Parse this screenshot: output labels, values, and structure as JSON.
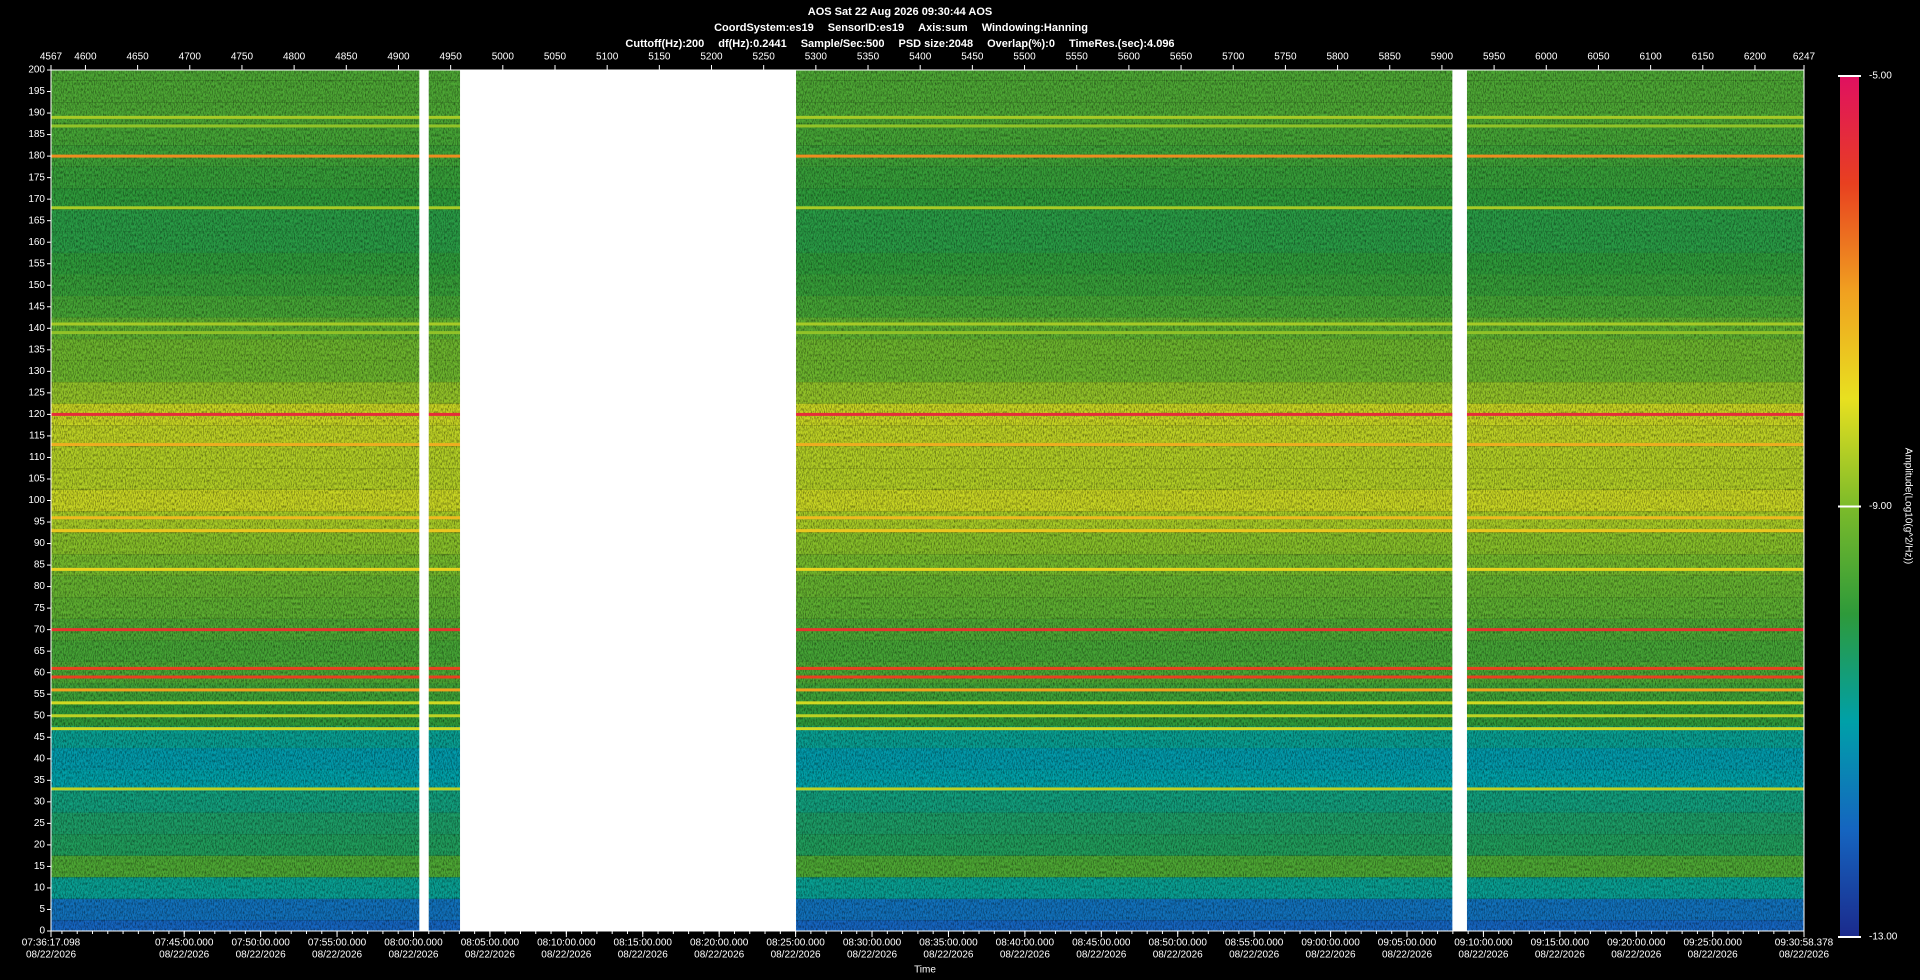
{
  "header": {
    "title": "AOS  Sat 22 Aug 2026 09:30:44  AOS",
    "info1": [
      "CoordSystem:es19",
      "SensorID:es19",
      "Axis:sum",
      "Windowing:Hanning"
    ],
    "info2": [
      "Cuttoff(Hz):200",
      "df(Hz):0.2441",
      "Sample/Sec:500",
      "PSD size:2048",
      "Overlap(%):0",
      "TimeRes.(sec):4.096"
    ]
  },
  "chart_data": {
    "type": "spectrogram",
    "x_label": "Time",
    "colorbar_label": "Amplitude(Log10(g^2/Hz))",
    "xlim": [
      4567,
      6247
    ],
    "xticks": [
      4567,
      4600,
      4650,
      4700,
      4750,
      4800,
      4850,
      4900,
      4950,
      5000,
      5050,
      5100,
      5150,
      5200,
      5250,
      5300,
      5350,
      5400,
      5450,
      5500,
      5550,
      5600,
      5650,
      5700,
      5750,
      5800,
      5850,
      5900,
      5950,
      6000,
      6050,
      6100,
      6150,
      6200,
      6247
    ],
    "time_ticks": [
      {
        "time": "07:36:17.098",
        "date": "08/22/2026"
      },
      {
        "time": "07:45:00.000",
        "date": "08/22/2026"
      },
      {
        "time": "07:50:00.000",
        "date": "08/22/2026"
      },
      {
        "time": "07:55:00.000",
        "date": "08/22/2026"
      },
      {
        "time": "08:00:00.000",
        "date": "08/22/2026"
      },
      {
        "time": "08:05:00.000",
        "date": "08/22/2026"
      },
      {
        "time": "08:10:00.000",
        "date": "08/22/2026"
      },
      {
        "time": "08:15:00.000",
        "date": "08/22/2026"
      },
      {
        "time": "08:20:00.000",
        "date": "08/22/2026"
      },
      {
        "time": "08:25:00.000",
        "date": "08/22/2026"
      },
      {
        "time": "08:30:00.000",
        "date": "08/22/2026"
      },
      {
        "time": "08:35:00.000",
        "date": "08/22/2026"
      },
      {
        "time": "08:40:00.000",
        "date": "08/22/2026"
      },
      {
        "time": "08:45:00.000",
        "date": "08/22/2026"
      },
      {
        "time": "08:50:00.000",
        "date": "08/22/2026"
      },
      {
        "time": "08:55:00.000",
        "date": "08/22/2026"
      },
      {
        "time": "09:00:00.000",
        "date": "08/22/2026"
      },
      {
        "time": "09:05:00.000",
        "date": "08/22/2026"
      },
      {
        "time": "09:10:00.000",
        "date": "08/22/2026"
      },
      {
        "time": "09:15:00.000",
        "date": "08/22/2026"
      },
      {
        "time": "09:20:00.000",
        "date": "08/22/2026"
      },
      {
        "time": "09:25:00.000",
        "date": "08/22/2026"
      },
      {
        "time": "09:30:58.378",
        "date": "08/22/2026"
      }
    ],
    "ylim": [
      0,
      200
    ],
    "yticks": [
      0,
      5,
      10,
      15,
      20,
      25,
      30,
      35,
      40,
      45,
      50,
      55,
      60,
      65,
      70,
      75,
      80,
      85,
      90,
      95,
      100,
      105,
      110,
      115,
      120,
      125,
      130,
      135,
      140,
      145,
      150,
      155,
      160,
      165,
      170,
      175,
      180,
      185,
      190,
      195,
      200
    ],
    "clim": [
      -13,
      -5
    ],
    "cticks": [
      {
        "value": -5,
        "label": "-5.00"
      },
      {
        "value": -9,
        "label": "-9.00"
      },
      {
        "value": -13,
        "label": "-13.00"
      }
    ],
    "colormap": [
      "#1b2a8c",
      "#1565c0",
      "#00a0a8",
      "#2e9a3a",
      "#7cbb2a",
      "#e8e020",
      "#f0a020",
      "#e84020",
      "#e01060"
    ],
    "profile": {
      "freqs": [
        0,
        5,
        10,
        15,
        20,
        25,
        30,
        35,
        40,
        45,
        50,
        55,
        60,
        65,
        70,
        75,
        80,
        85,
        90,
        95,
        100,
        105,
        110,
        115,
        120,
        125,
        130,
        135,
        140,
        145,
        150,
        155,
        160,
        165,
        170,
        175,
        180,
        185,
        190,
        195,
        200
      ],
      "values": [
        -12,
        -11.8,
        -10.8,
        -9.6,
        -10.3,
        -10.4,
        -10.6,
        -11,
        -11.1,
        -10.8,
        -10,
        -9.8,
        -9.6,
        -9.7,
        -9.6,
        -9.4,
        -9.3,
        -9.1,
        -8.9,
        -8.6,
        -8.3,
        -8.5,
        -8.5,
        -8.4,
        -8.3,
        -8.8,
        -9.2,
        -9.2,
        -9.4,
        -9.7,
        -9.9,
        -10,
        -10.1,
        -10.1,
        -10,
        -9.9,
        -9.8,
        -9.7,
        -9.6,
        -9.6,
        -9.6
      ]
    },
    "tones": [
      {
        "freq": 189,
        "amp": -8.6
      },
      {
        "freq": 187,
        "amp": -8.8
      },
      {
        "freq": 180,
        "amp": -6.8
      },
      {
        "freq": 168,
        "amp": -8.6
      },
      {
        "freq": 141,
        "amp": -8.6
      },
      {
        "freq": 139,
        "amp": -8.8
      },
      {
        "freq": 120,
        "amp": -5.6
      },
      {
        "freq": 113,
        "amp": -7.2
      },
      {
        "freq": 96,
        "amp": -7.4
      },
      {
        "freq": 93,
        "amp": -7.6
      },
      {
        "freq": 84,
        "amp": -7.8
      },
      {
        "freq": 70,
        "amp": -5.8
      },
      {
        "freq": 61,
        "amp": -6
      },
      {
        "freq": 59,
        "amp": -6
      },
      {
        "freq": 56,
        "amp": -7
      },
      {
        "freq": 53,
        "amp": -8.2
      },
      {
        "freq": 50,
        "amp": -8.4
      },
      {
        "freq": 47,
        "amp": -8.2
      },
      {
        "freq": 33,
        "amp": -8.4
      }
    ],
    "gaps": [
      [
        4920,
        4929
      ],
      [
        4959,
        5281
      ],
      [
        5910,
        5924
      ]
    ]
  }
}
